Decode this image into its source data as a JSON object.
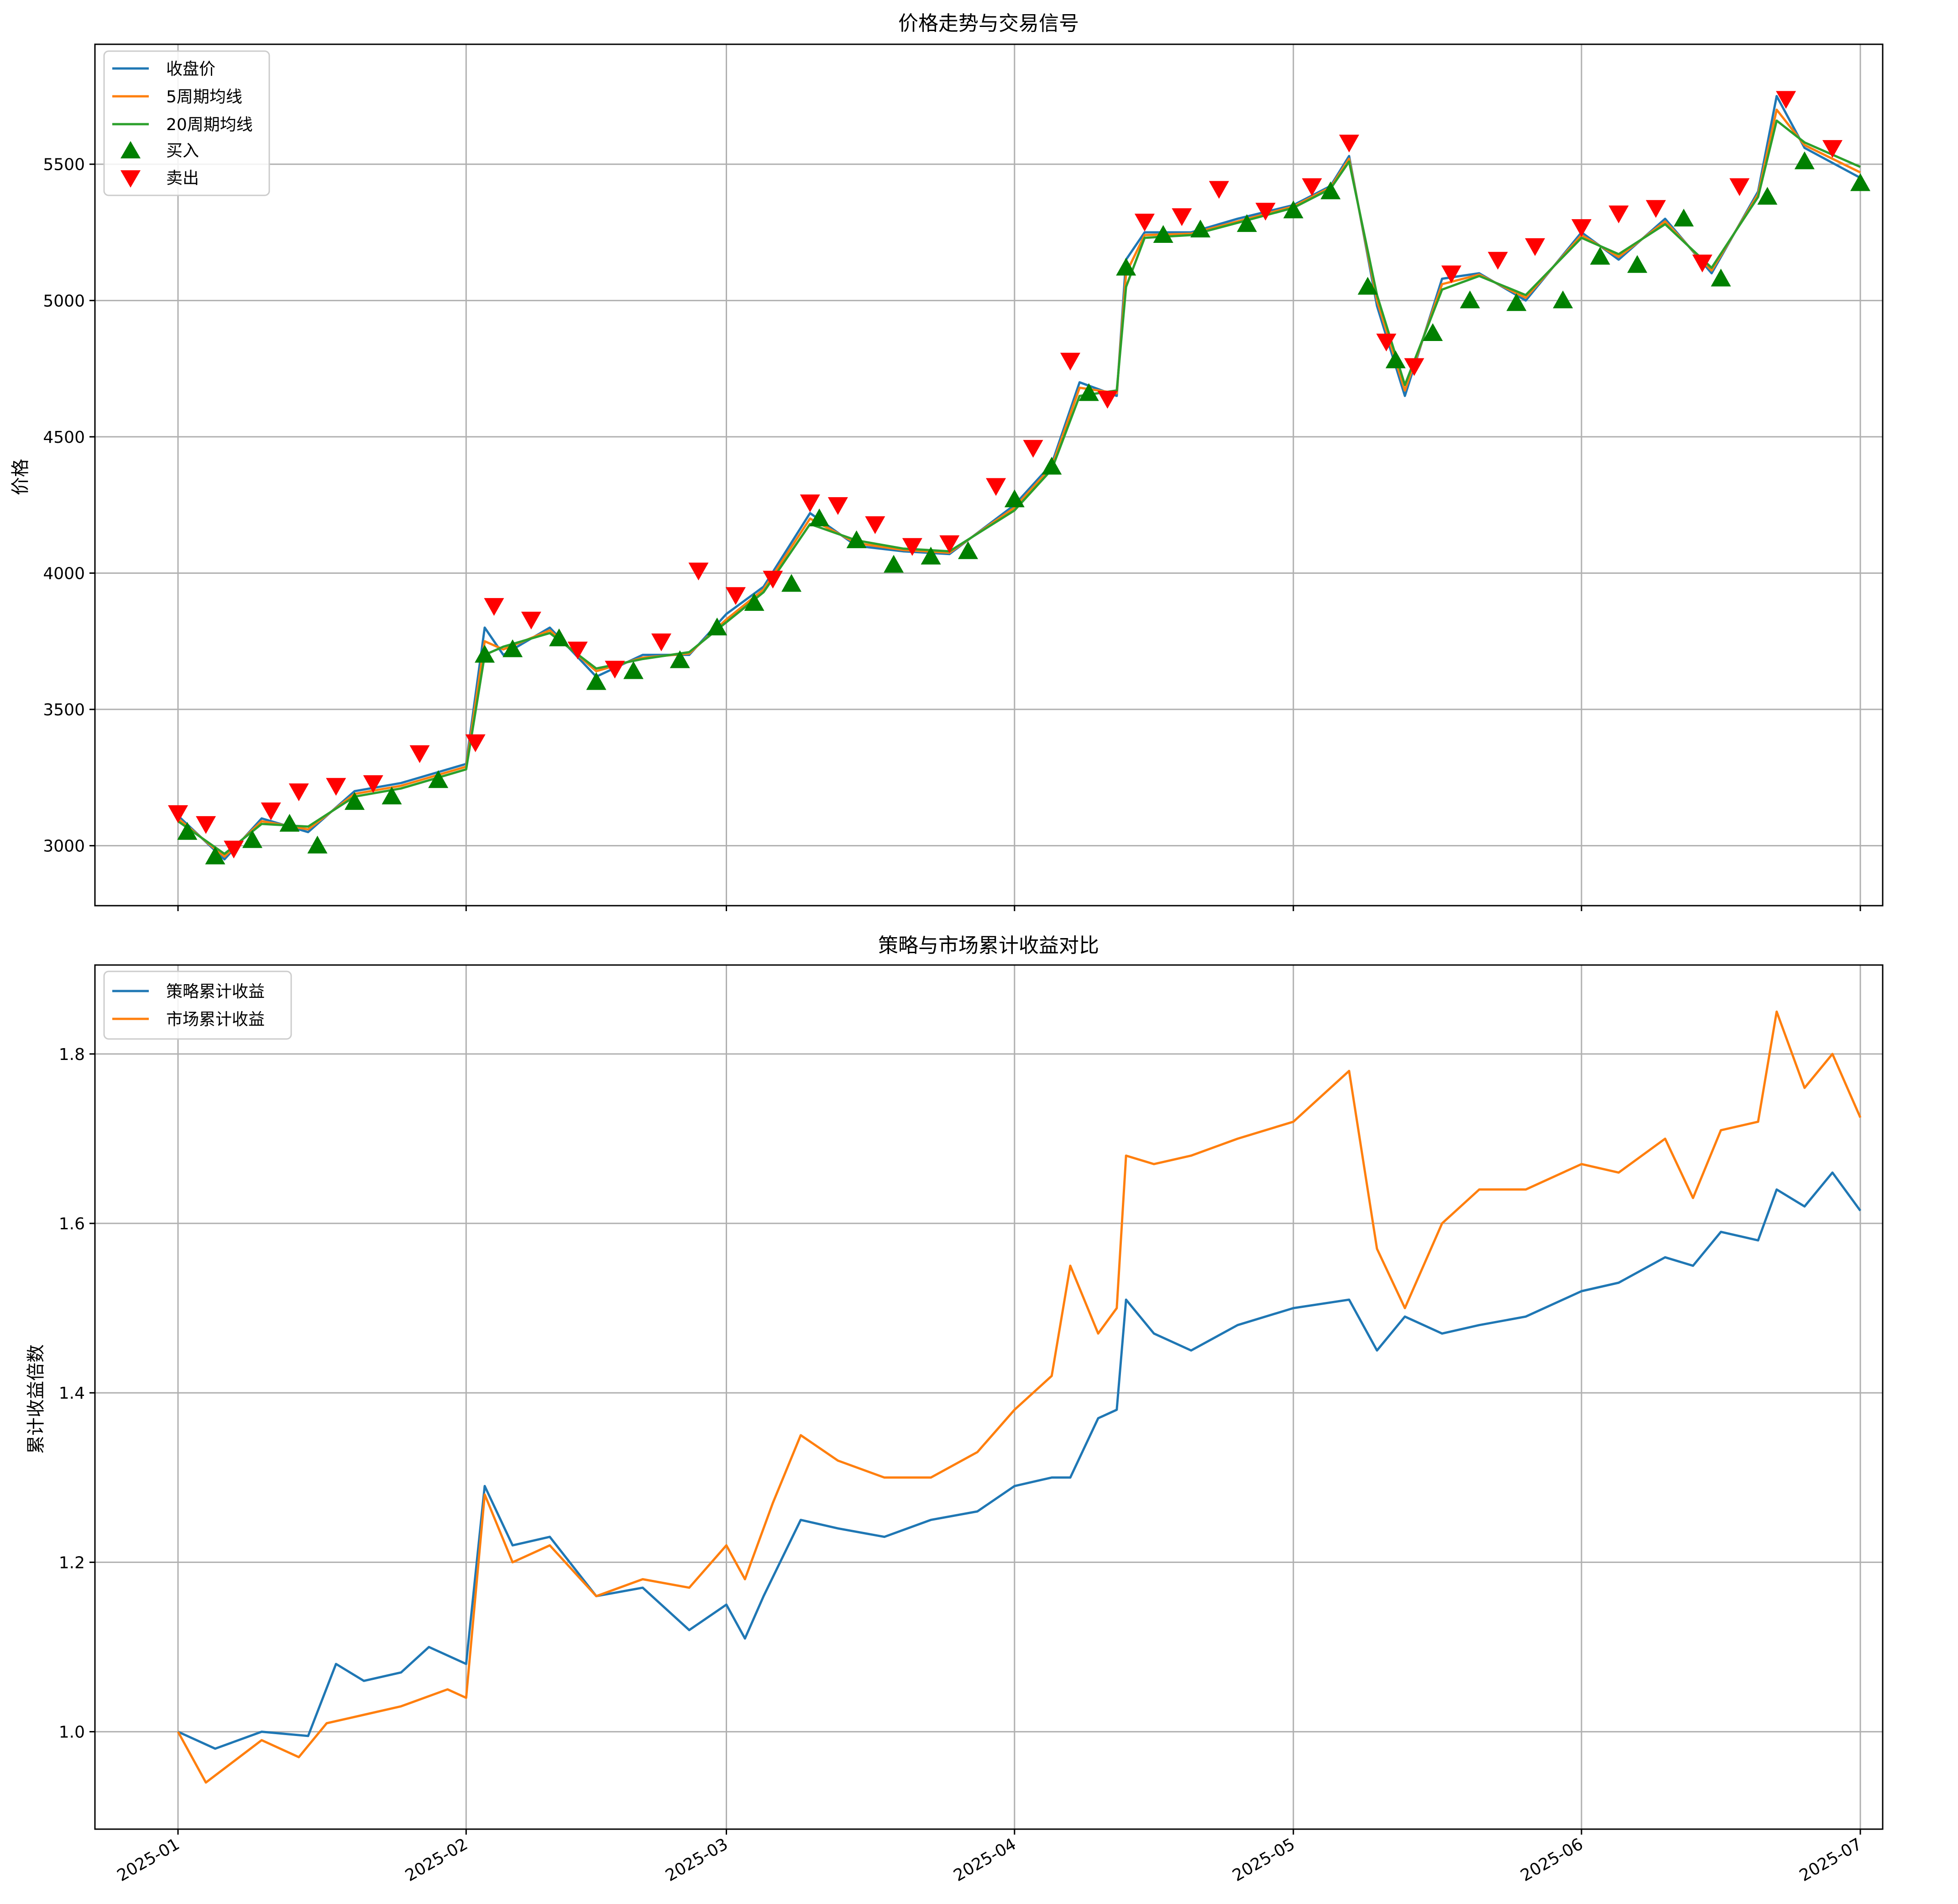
{
  "chart_data": [
    {
      "type": "line",
      "title": "价格走势与交易信号",
      "ylabel": "价格",
      "xlabel": "",
      "ylim": [
        2780,
        5940
      ],
      "yticks": [
        3000,
        3500,
        4000,
        4500,
        5000,
        5500
      ],
      "x_range": [
        "2025-01-01",
        "2025-07-01"
      ],
      "grid": true,
      "legend_position": "top-left",
      "series": [
        {
          "name": "收盘价",
          "color": "#1f77b4",
          "x": [
            "2025-01-01",
            "2025-01-06",
            "2025-01-10",
            "2025-01-15",
            "2025-01-20",
            "2025-01-25",
            "2025-02-01",
            "2025-02-03",
            "2025-02-05",
            "2025-02-10",
            "2025-02-15",
            "2025-02-20",
            "2025-02-25",
            "2025-03-01",
            "2025-03-05",
            "2025-03-10",
            "2025-03-15",
            "2025-03-20",
            "2025-03-25",
            "2025-04-01",
            "2025-04-05",
            "2025-04-08",
            "2025-04-12",
            "2025-04-13",
            "2025-04-15",
            "2025-04-20",
            "2025-04-25",
            "2025-05-01",
            "2025-05-05",
            "2025-05-07",
            "2025-05-10",
            "2025-05-13",
            "2025-05-17",
            "2025-05-21",
            "2025-05-26",
            "2025-06-01",
            "2025-06-05",
            "2025-06-10",
            "2025-06-15",
            "2025-06-20",
            "2025-06-22",
            "2025-06-25",
            "2025-07-01"
          ],
          "values": [
            3110,
            2950,
            3100,
            3050,
            3200,
            3230,
            3300,
            3800,
            3700,
            3800,
            3620,
            3700,
            3700,
            3850,
            3950,
            4220,
            4100,
            4080,
            4070,
            4250,
            4400,
            4700,
            4650,
            5150,
            5250,
            5250,
            5300,
            5350,
            5420,
            5530,
            4980,
            4650,
            5080,
            5100,
            5000,
            5250,
            5150,
            5300,
            5100,
            5400,
            5750,
            5560,
            5450
          ]
        },
        {
          "name": "5周期均线",
          "color": "#ff7f0e",
          "x": [
            "2025-01-01",
            "2025-01-06",
            "2025-01-10",
            "2025-01-15",
            "2025-01-20",
            "2025-01-25",
            "2025-02-01",
            "2025-02-03",
            "2025-02-05",
            "2025-02-10",
            "2025-02-15",
            "2025-02-20",
            "2025-02-25",
            "2025-03-01",
            "2025-03-05",
            "2025-03-10",
            "2025-03-15",
            "2025-03-20",
            "2025-03-25",
            "2025-04-01",
            "2025-04-05",
            "2025-04-08",
            "2025-04-12",
            "2025-04-13",
            "2025-04-15",
            "2025-04-20",
            "2025-04-25",
            "2025-05-01",
            "2025-05-05",
            "2025-05-07",
            "2025-05-10",
            "2025-05-13",
            "2025-05-17",
            "2025-05-21",
            "2025-05-26",
            "2025-06-01",
            "2025-06-05",
            "2025-06-10",
            "2025-06-15",
            "2025-06-20",
            "2025-06-22",
            "2025-06-25",
            "2025-07-01"
          ],
          "values": [
            3100,
            2960,
            3090,
            3060,
            3190,
            3220,
            3290,
            3750,
            3720,
            3790,
            3640,
            3690,
            3705,
            3830,
            3940,
            4200,
            4110,
            4085,
            4075,
            4240,
            4390,
            4680,
            4660,
            5100,
            5240,
            5245,
            5290,
            5345,
            5415,
            5520,
            5000,
            4670,
            5060,
            5095,
            5010,
            5240,
            5160,
            5290,
            5110,
            5390,
            5700,
            5570,
            5470
          ]
        },
        {
          "name": "20周期均线",
          "color": "#2ca02c",
          "x": [
            "2025-01-01",
            "2025-01-06",
            "2025-01-10",
            "2025-01-15",
            "2025-01-20",
            "2025-01-25",
            "2025-02-01",
            "2025-02-03",
            "2025-02-05",
            "2025-02-10",
            "2025-02-15",
            "2025-02-20",
            "2025-02-25",
            "2025-03-01",
            "2025-03-05",
            "2025-03-10",
            "2025-03-15",
            "2025-03-20",
            "2025-03-25",
            "2025-04-01",
            "2025-04-05",
            "2025-04-08",
            "2025-04-12",
            "2025-04-13",
            "2025-04-15",
            "2025-04-20",
            "2025-04-25",
            "2025-05-01",
            "2025-05-05",
            "2025-05-07",
            "2025-05-10",
            "2025-05-13",
            "2025-05-17",
            "2025-05-21",
            "2025-05-26",
            "2025-06-01",
            "2025-06-05",
            "2025-06-10",
            "2025-06-15",
            "2025-06-20",
            "2025-06-22",
            "2025-06-25",
            "2025-07-01"
          ],
          "values": [
            3090,
            2970,
            3080,
            3070,
            3180,
            3210,
            3280,
            3700,
            3730,
            3780,
            3650,
            3685,
            3710,
            3820,
            3930,
            4180,
            4120,
            4090,
            4080,
            4230,
            4380,
            4650,
            4670,
            5050,
            5230,
            5240,
            5285,
            5340,
            5410,
            5510,
            5020,
            4690,
            5040,
            5090,
            5020,
            5230,
            5170,
            5280,
            5120,
            5380,
            5660,
            5580,
            5490
          ]
        }
      ],
      "signals": [
        {
          "name": "买入",
          "color": "#008000",
          "marker": "triangle-up",
          "x": [
            "2025-01-02",
            "2025-01-05",
            "2025-01-09",
            "2025-01-13",
            "2025-01-16",
            "2025-01-20",
            "2025-01-24",
            "2025-01-29",
            "2025-02-03",
            "2025-02-06",
            "2025-02-11",
            "2025-02-15",
            "2025-02-19",
            "2025-02-24",
            "2025-02-28",
            "2025-03-04",
            "2025-03-08",
            "2025-03-11",
            "2025-03-15",
            "2025-03-19",
            "2025-03-23",
            "2025-03-27",
            "2025-04-01",
            "2025-04-05",
            "2025-04-09",
            "2025-04-13",
            "2025-04-17",
            "2025-04-21",
            "2025-04-26",
            "2025-05-01",
            "2025-05-05",
            "2025-05-09",
            "2025-05-12",
            "2025-05-16",
            "2025-05-20",
            "2025-05-25",
            "2025-05-30",
            "2025-06-03",
            "2025-06-07",
            "2025-06-12",
            "2025-06-16",
            "2025-06-21",
            "2025-06-25",
            "2025-07-01"
          ],
          "values": [
            3050,
            2960,
            3020,
            3080,
            3000,
            3160,
            3180,
            3240,
            3700,
            3720,
            3760,
            3600,
            3640,
            3680,
            3800,
            3890,
            3960,
            4200,
            4120,
            4030,
            4060,
            4080,
            4270,
            4390,
            4660,
            5120,
            5240,
            5260,
            5280,
            5330,
            5400,
            5050,
            4780,
            4880,
            5000,
            4990,
            5000,
            5160,
            5130,
            5300,
            5080,
            5380,
            5510,
            5430
          ]
        },
        {
          "name": "卖出",
          "color": "#ff0000",
          "marker": "triangle-down",
          "x": [
            "2025-01-01",
            "2025-01-04",
            "2025-01-07",
            "2025-01-11",
            "2025-01-14",
            "2025-01-18",
            "2025-01-22",
            "2025-01-27",
            "2025-02-02",
            "2025-02-04",
            "2025-02-08",
            "2025-02-13",
            "2025-02-17",
            "2025-02-22",
            "2025-02-26",
            "2025-03-02",
            "2025-03-06",
            "2025-03-10",
            "2025-03-13",
            "2025-03-17",
            "2025-03-21",
            "2025-03-25",
            "2025-03-30",
            "2025-04-03",
            "2025-04-07",
            "2025-04-11",
            "2025-04-15",
            "2025-04-19",
            "2025-04-23",
            "2025-04-28",
            "2025-05-03",
            "2025-05-07",
            "2025-05-11",
            "2025-05-14",
            "2025-05-18",
            "2025-05-23",
            "2025-05-27",
            "2025-06-01",
            "2025-06-05",
            "2025-06-09",
            "2025-06-14",
            "2025-06-18",
            "2025-06-23",
            "2025-06-28"
          ],
          "values": [
            3120,
            3080,
            2990,
            3130,
            3200,
            3220,
            3230,
            3340,
            3380,
            3880,
            3830,
            3720,
            3650,
            3750,
            4010,
            3920,
            3980,
            4260,
            4250,
            4180,
            4100,
            4110,
            4320,
            4460,
            4780,
            4640,
            5290,
            5310,
            5410,
            5330,
            5420,
            5580,
            4850,
            4760,
            5100,
            5150,
            5200,
            5270,
            5320,
            5340,
            5140,
            5420,
            5740,
            5560
          ]
        }
      ]
    },
    {
      "type": "line",
      "title": "策略与市场累计收益对比",
      "ylabel": "累计收益倍数",
      "xlabel": "",
      "ylim": [
        0.885,
        1.905
      ],
      "yticks": [
        1.0,
        1.2,
        1.4,
        1.6,
        1.8
      ],
      "ytick_labels": [
        "1.0",
        "1.2",
        "1.4",
        "1.6",
        "1.8"
      ],
      "x_range": [
        "2025-01-01",
        "2025-07-01"
      ],
      "xticks": [
        "2025-01",
        "2025-02",
        "2025-03",
        "2025-04",
        "2025-05",
        "2025-06",
        "2025-07"
      ],
      "grid": true,
      "legend_position": "top-left",
      "series": [
        {
          "name": "策略累计收益",
          "color": "#1f77b4",
          "x": [
            "2025-01-01",
            "2025-01-05",
            "2025-01-10",
            "2025-01-15",
            "2025-01-18",
            "2025-01-21",
            "2025-01-25",
            "2025-01-28",
            "2025-02-01",
            "2025-02-03",
            "2025-02-06",
            "2025-02-10",
            "2025-02-15",
            "2025-02-20",
            "2025-02-25",
            "2025-03-01",
            "2025-03-03",
            "2025-03-05",
            "2025-03-09",
            "2025-03-13",
            "2025-03-18",
            "2025-03-23",
            "2025-03-28",
            "2025-04-01",
            "2025-04-05",
            "2025-04-07",
            "2025-04-10",
            "2025-04-12",
            "2025-04-13",
            "2025-04-16",
            "2025-04-20",
            "2025-04-25",
            "2025-05-01",
            "2025-05-07",
            "2025-05-10",
            "2025-05-13",
            "2025-05-17",
            "2025-05-21",
            "2025-05-26",
            "2025-06-01",
            "2025-06-05",
            "2025-06-10",
            "2025-06-13",
            "2025-06-16",
            "2025-06-20",
            "2025-06-22",
            "2025-06-25",
            "2025-06-28",
            "2025-07-01"
          ],
          "values": [
            1.0,
            0.98,
            1.0,
            0.995,
            1.08,
            1.06,
            1.07,
            1.1,
            1.08,
            1.29,
            1.22,
            1.23,
            1.16,
            1.17,
            1.12,
            1.15,
            1.11,
            1.16,
            1.25,
            1.24,
            1.23,
            1.25,
            1.26,
            1.29,
            1.3,
            1.3,
            1.37,
            1.38,
            1.51,
            1.47,
            1.45,
            1.48,
            1.5,
            1.51,
            1.45,
            1.49,
            1.47,
            1.48,
            1.49,
            1.52,
            1.53,
            1.56,
            1.55,
            1.59,
            1.58,
            1.64,
            1.62,
            1.66,
            1.615
          ]
        },
        {
          "name": "市场累计收益",
          "color": "#ff7f0e",
          "x": [
            "2025-01-01",
            "2025-01-04",
            "2025-01-10",
            "2025-01-14",
            "2025-01-17",
            "2025-01-21",
            "2025-01-25",
            "2025-01-30",
            "2025-02-01",
            "2025-02-03",
            "2025-02-06",
            "2025-02-10",
            "2025-02-15",
            "2025-02-20",
            "2025-02-25",
            "2025-03-01",
            "2025-03-03",
            "2025-03-06",
            "2025-03-09",
            "2025-03-13",
            "2025-03-18",
            "2025-03-23",
            "2025-03-28",
            "2025-04-01",
            "2025-04-05",
            "2025-04-07",
            "2025-04-10",
            "2025-04-12",
            "2025-04-13",
            "2025-04-16",
            "2025-04-20",
            "2025-04-25",
            "2025-05-01",
            "2025-05-07",
            "2025-05-10",
            "2025-05-13",
            "2025-05-17",
            "2025-05-21",
            "2025-05-26",
            "2025-06-01",
            "2025-06-05",
            "2025-06-10",
            "2025-06-13",
            "2025-06-16",
            "2025-06-20",
            "2025-06-22",
            "2025-06-25",
            "2025-06-28",
            "2025-07-01"
          ],
          "values": [
            1.0,
            0.94,
            0.99,
            0.97,
            1.01,
            1.02,
            1.03,
            1.05,
            1.04,
            1.28,
            1.2,
            1.22,
            1.16,
            1.18,
            1.17,
            1.22,
            1.18,
            1.27,
            1.35,
            1.32,
            1.3,
            1.3,
            1.33,
            1.38,
            1.42,
            1.55,
            1.47,
            1.5,
            1.68,
            1.67,
            1.68,
            1.7,
            1.72,
            1.78,
            1.57,
            1.5,
            1.6,
            1.64,
            1.64,
            1.67,
            1.66,
            1.7,
            1.63,
            1.71,
            1.72,
            1.85,
            1.76,
            1.8,
            1.725
          ]
        }
      ]
    }
  ]
}
